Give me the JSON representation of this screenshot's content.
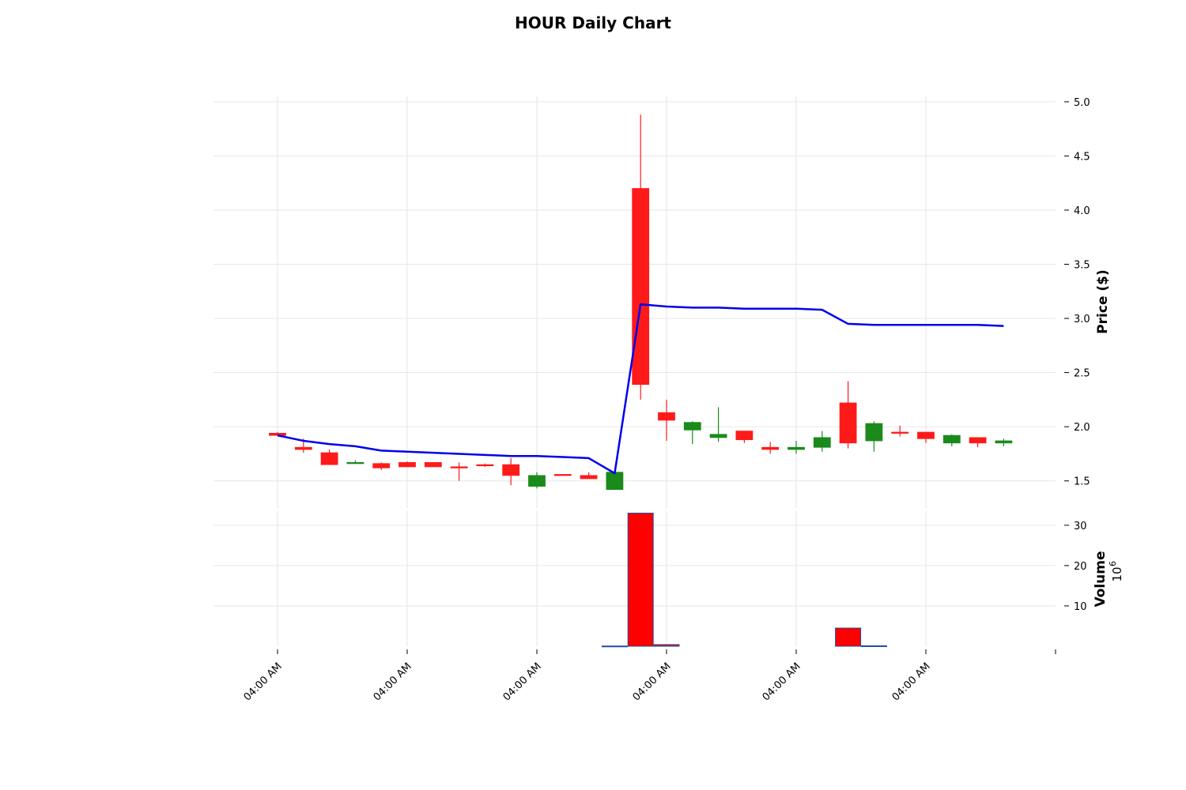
{
  "chart_data": {
    "type": "candlestick",
    "title": "HOUR Daily Chart",
    "price_ylabel": "Price ($)",
    "volume_ylabel": "Volume",
    "volume_exponent_base": "10",
    "volume_exponent": "6",
    "grid": true,
    "price_ylim": [
      1.25,
      5.05
    ],
    "price_yticks": [
      "1.5",
      "2.0",
      "2.5",
      "3.0",
      "3.5",
      "4.0",
      "4.5",
      "5.0"
    ],
    "volume_ylim": [
      0,
      33.5
    ],
    "volume_yticks": [
      "10",
      "20",
      "30"
    ],
    "x_ticks": [
      "04:00 AM",
      "04:00 AM",
      "04:00 AM",
      "04:00 AM",
      "04:00 AM",
      "04:00 AM"
    ],
    "colors": {
      "up": "#1a8a1a",
      "down": "#ff1a1a",
      "ma": "#0000ee",
      "volume_bar": "#ff0000",
      "volume_edge": "#1f4e9c"
    },
    "candles": [
      {
        "open": 1.94,
        "high": 1.95,
        "low": 1.92,
        "close": 1.92
      },
      {
        "open": 1.81,
        "high": 1.89,
        "low": 1.76,
        "close": 1.79
      },
      {
        "open": 1.76,
        "high": 1.79,
        "low": 1.65,
        "close": 1.65
      },
      {
        "open": 1.66,
        "high": 1.69,
        "low": 1.66,
        "close": 1.67
      },
      {
        "open": 1.66,
        "high": 1.67,
        "low": 1.6,
        "close": 1.62
      },
      {
        "open": 1.67,
        "high": 1.68,
        "low": 1.63,
        "close": 1.63
      },
      {
        "open": 1.67,
        "high": 1.67,
        "low": 1.63,
        "close": 1.63
      },
      {
        "open": 1.63,
        "high": 1.67,
        "low": 1.5,
        "close": 1.62
      },
      {
        "open": 1.65,
        "high": 1.66,
        "low": 1.63,
        "close": 1.64
      },
      {
        "open": 1.65,
        "high": 1.71,
        "low": 1.46,
        "close": 1.55
      },
      {
        "open": 1.45,
        "high": 1.58,
        "low": 1.43,
        "close": 1.55
      },
      {
        "open": 1.56,
        "high": 1.56,
        "low": 1.55,
        "close": 1.55
      },
      {
        "open": 1.55,
        "high": 1.58,
        "low": 1.52,
        "close": 1.52
      },
      {
        "open": 1.42,
        "high": 1.58,
        "low": 1.42,
        "close": 1.58
      },
      {
        "open": 4.2,
        "high": 4.88,
        "low": 2.25,
        "close": 2.39
      },
      {
        "open": 2.13,
        "high": 2.25,
        "low": 1.87,
        "close": 2.06
      },
      {
        "open": 1.97,
        "high": 2.05,
        "low": 1.84,
        "close": 2.04
      },
      {
        "open": 1.9,
        "high": 2.18,
        "low": 1.86,
        "close": 1.93
      },
      {
        "open": 1.96,
        "high": 1.96,
        "low": 1.85,
        "close": 1.88
      },
      {
        "open": 1.81,
        "high": 1.86,
        "low": 1.75,
        "close": 1.79
      },
      {
        "open": 1.79,
        "high": 1.87,
        "low": 1.75,
        "close": 1.81
      },
      {
        "open": 1.81,
        "high": 1.96,
        "low": 1.77,
        "close": 1.9
      },
      {
        "open": 2.22,
        "high": 2.42,
        "low": 1.8,
        "close": 1.85
      },
      {
        "open": 1.87,
        "high": 2.05,
        "low": 1.77,
        "close": 2.03
      },
      {
        "open": 1.95,
        "high": 2.01,
        "low": 1.91,
        "close": 1.94
      },
      {
        "open": 1.95,
        "high": 1.95,
        "low": 1.85,
        "close": 1.89
      },
      {
        "open": 1.85,
        "high": 1.93,
        "low": 1.82,
        "close": 1.92
      },
      {
        "open": 1.9,
        "high": 1.9,
        "low": 1.81,
        "close": 1.85
      },
      {
        "open": 1.85,
        "high": 1.89,
        "low": 1.82,
        "close": 1.87
      }
    ],
    "moving_average": [
      1.92,
      1.87,
      1.84,
      1.82,
      1.78,
      1.77,
      1.76,
      1.75,
      1.74,
      1.73,
      1.73,
      1.72,
      1.71,
      1.57,
      3.13,
      3.11,
      3.1,
      3.1,
      3.09,
      3.09,
      3.09,
      3.08,
      2.95,
      2.94,
      2.94,
      2.94,
      2.94,
      2.94,
      2.93
    ],
    "volume": [
      {
        "index": 13,
        "value": 0.05
      },
      {
        "index": 14,
        "value": 33.0
      },
      {
        "index": 15,
        "value": 0.4
      },
      {
        "index": 22,
        "value": 4.5
      },
      {
        "index": 23,
        "value": 0.1
      }
    ]
  }
}
